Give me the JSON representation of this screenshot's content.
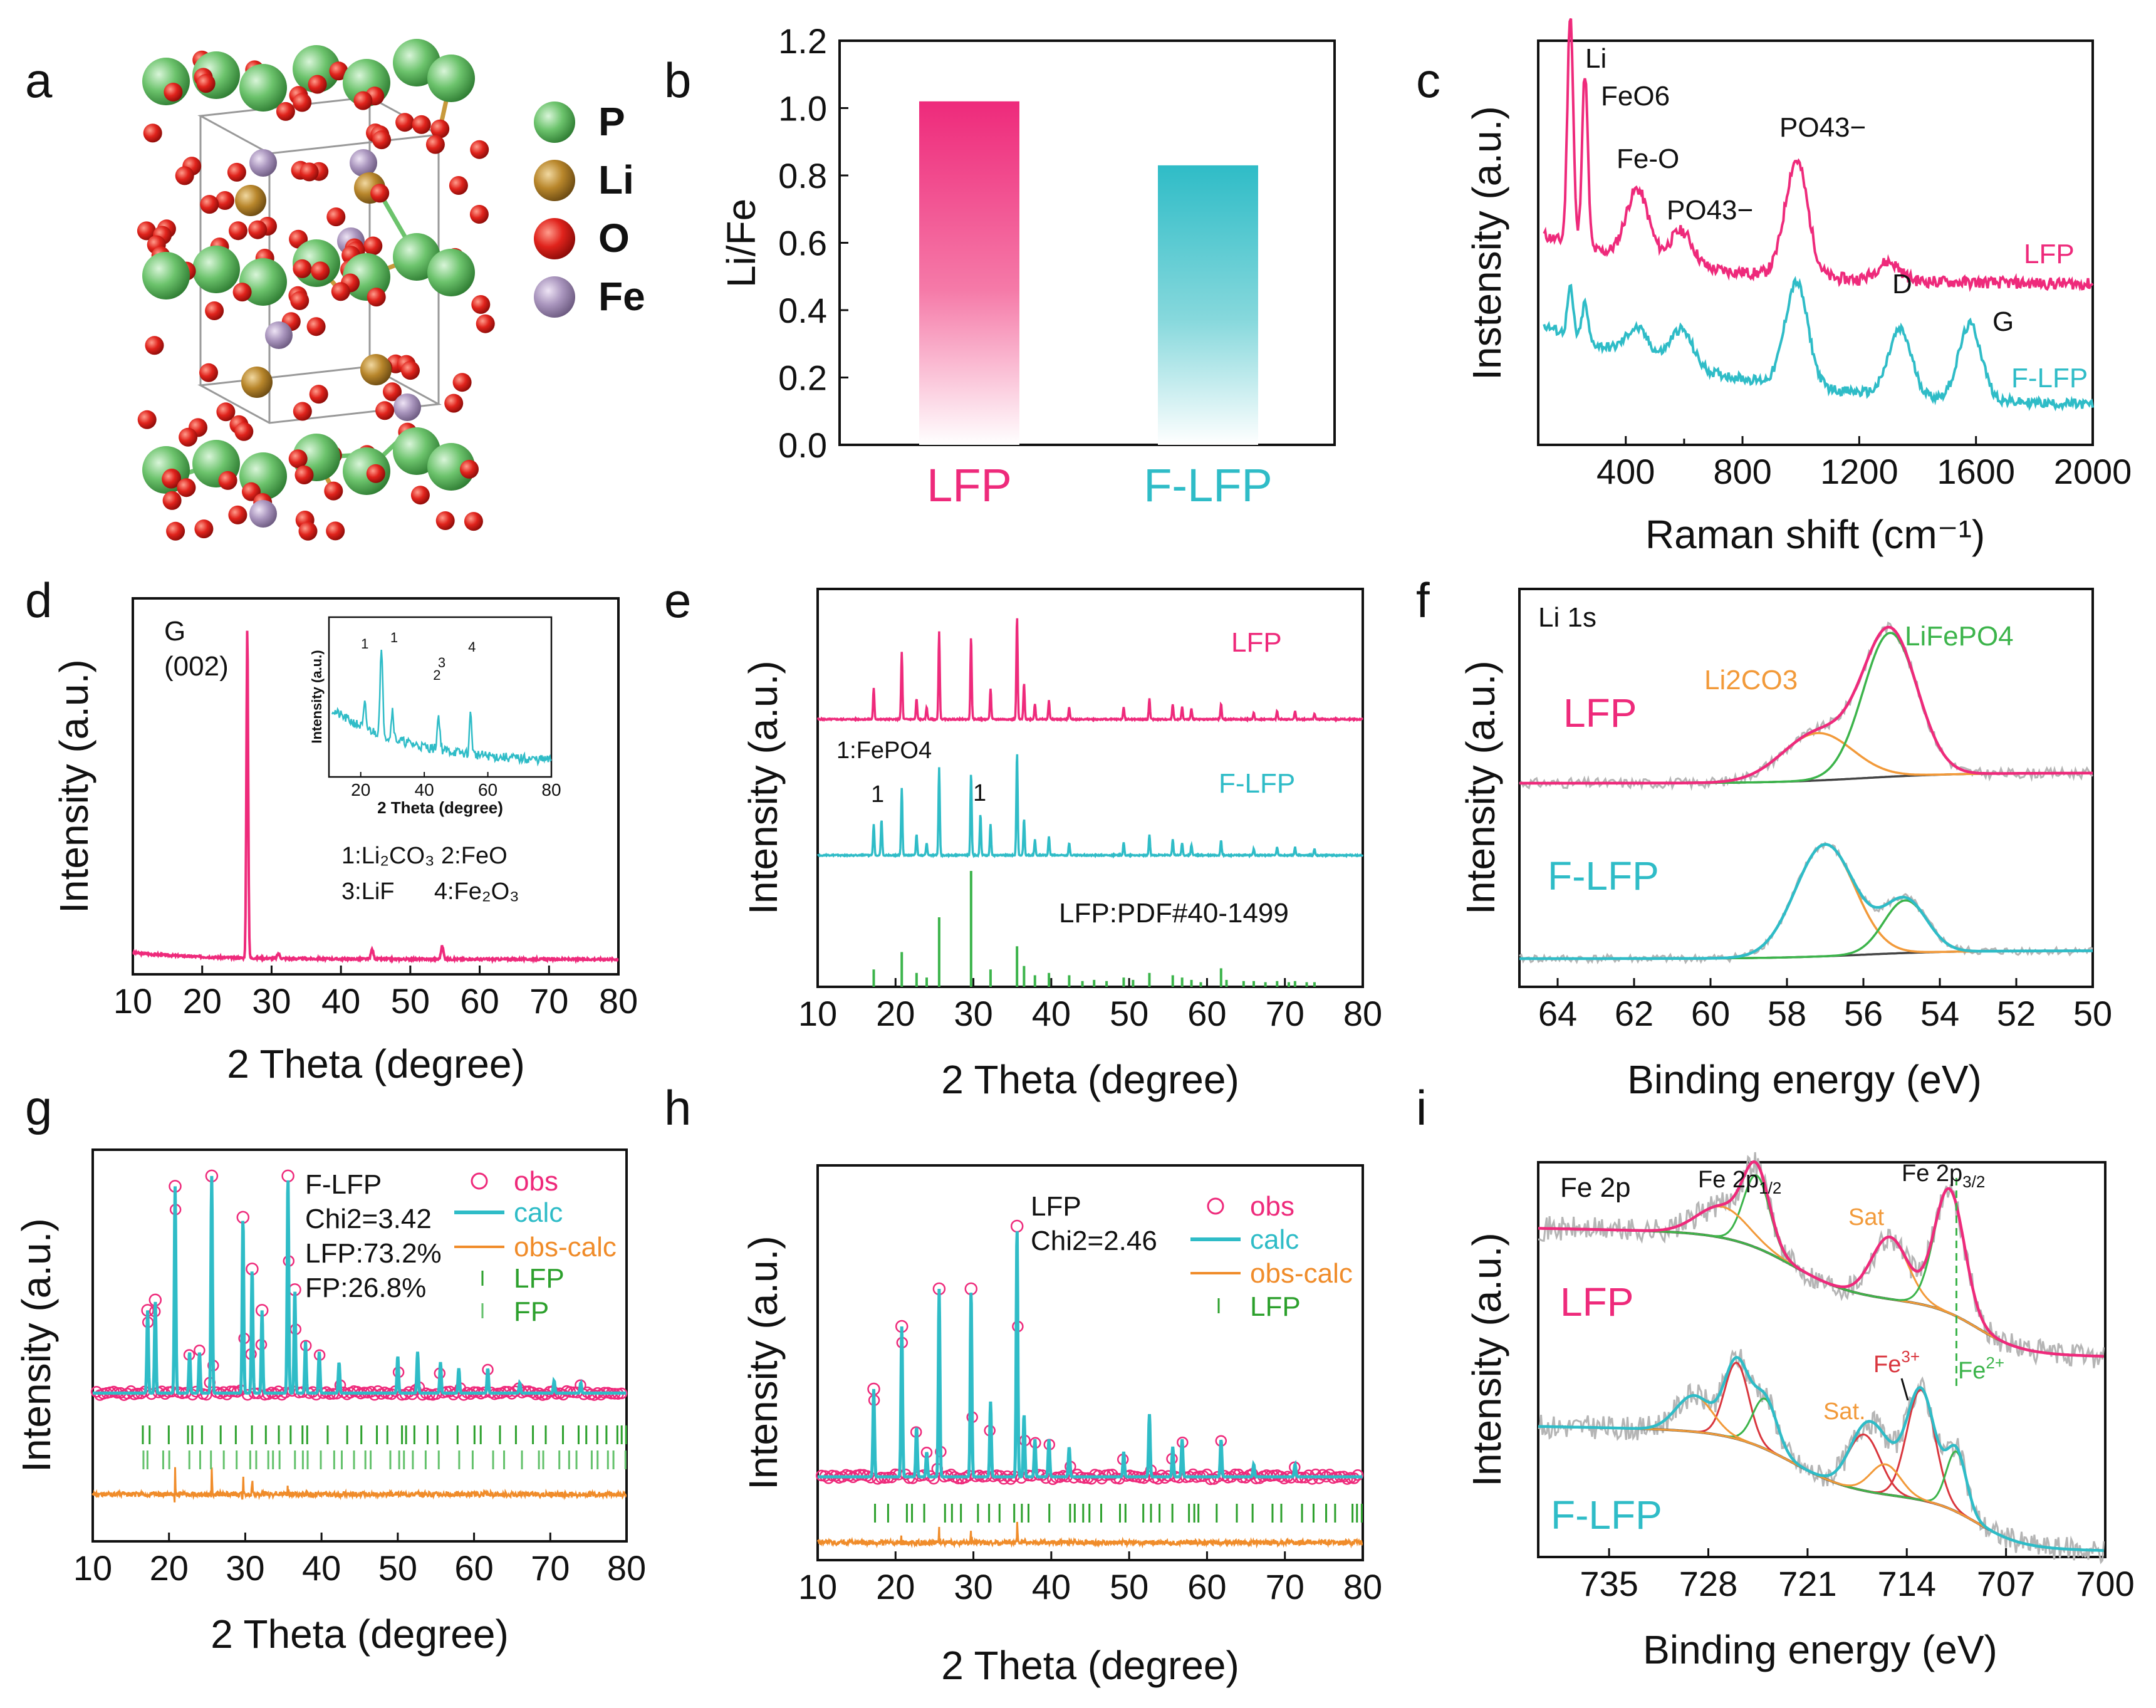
{
  "panel_labels": [
    "a",
    "b",
    "c",
    "d",
    "e",
    "f",
    "g",
    "h",
    "i"
  ],
  "colors": {
    "lfp": "#ee2a7b",
    "flfp": "#2fbcc7",
    "ref": "#2ca02c",
    "diff": "#f08c2a",
    "grey": "#b5b5b5",
    "orange": "#f29a3a",
    "green": "#3cb44b",
    "red": "#d9363e",
    "dark": "#444444"
  },
  "panel_a": {
    "legend": [
      {
        "label": "P",
        "color": "#6cc36c"
      },
      {
        "label": "Li",
        "color": "#b8862b"
      },
      {
        "label": "O",
        "color": "#e0231c"
      },
      {
        "label": "Fe",
        "color": "#a995bd"
      }
    ]
  },
  "chart_data": [
    {
      "id": "b",
      "type": "bar",
      "categories": [
        "LFP",
        "F-LFP"
      ],
      "values": [
        1.02,
        0.83
      ],
      "ylabel": "Li/Fe",
      "ylim": [
        0,
        1.2
      ],
      "yticks": [
        "0.0",
        "0.2",
        "0.4",
        "0.6",
        "0.8",
        "1.0",
        "1.2"
      ]
    },
    {
      "id": "c",
      "type": "line",
      "xlabel": "Raman shift (cm⁻¹)",
      "ylabel": "Instensity (a.u.)",
      "xlim": [
        100,
        2000
      ],
      "xticks": [
        "400",
        "800",
        "1200",
        "1600",
        "2000"
      ],
      "series": [
        {
          "name": "LFP",
          "peaks": [
            [
              210,
              1.0
            ],
            [
              260,
              0.75
            ],
            [
              440,
              0.3
            ],
            [
              590,
              0.15
            ],
            [
              985,
              0.5
            ],
            [
              1300,
              0.08
            ]
          ]
        },
        {
          "name": "F-LFP",
          "peaks": [
            [
              210,
              0.25
            ],
            [
              260,
              0.2
            ],
            [
              440,
              0.15
            ],
            [
              590,
              0.2
            ],
            [
              985,
              0.55
            ],
            [
              1340,
              0.35
            ],
            [
              1580,
              0.4
            ]
          ]
        }
      ],
      "annotations": [
        "Li",
        "FeO6",
        "Fe-O",
        "PO43−",
        "PO43−",
        "D",
        "G"
      ]
    },
    {
      "id": "d",
      "type": "line",
      "xlabel": "2 Theta (degree)",
      "ylabel": "Intensity (a.u.)",
      "xlim": [
        10,
        80
      ],
      "xticks": [
        "10",
        "20",
        "30",
        "40",
        "50",
        "60",
        "70",
        "80"
      ],
      "peak_label": "G",
      "peak_label2": "(002)",
      "main_peak": 26.5,
      "minor_peaks": [
        [
          44.5,
          0.03
        ],
        [
          54.6,
          0.04
        ],
        [
          31,
          0.015
        ]
      ],
      "inset": {
        "xlabel": "2 Theta (degree)",
        "ylabel": "Intensity (a.u.)",
        "xticks": [
          "20",
          "40",
          "60",
          "80"
        ],
        "labels": [
          "1",
          "1",
          "2",
          "3",
          "4"
        ],
        "legend": [
          "1:Li₂CO₃  2:FeO",
          "3:LiF      4:Fe₂O₃"
        ]
      }
    },
    {
      "id": "e",
      "type": "line",
      "xlabel": "2 Theta (degree)",
      "ylabel": "Intensity (a.u.)",
      "xlim": [
        10,
        80
      ],
      "xticks": [
        "10",
        "20",
        "30",
        "40",
        "50",
        "60",
        "70",
        "80"
      ],
      "peaks": [
        [
          17.2,
          0.3
        ],
        [
          20.8,
          0.65
        ],
        [
          22.7,
          0.2
        ],
        [
          24.0,
          0.12
        ],
        [
          25.6,
          0.85
        ],
        [
          29.7,
          0.8
        ],
        [
          32.2,
          0.3
        ],
        [
          35.6,
          1.0
        ],
        [
          36.5,
          0.35
        ],
        [
          37.9,
          0.15
        ],
        [
          39.7,
          0.18
        ],
        [
          42.3,
          0.12
        ],
        [
          49.3,
          0.12
        ],
        [
          52.6,
          0.2
        ],
        [
          55.6,
          0.15
        ],
        [
          56.8,
          0.12
        ],
        [
          58.0,
          0.1
        ],
        [
          61.8,
          0.15
        ],
        [
          66.0,
          0.06
        ],
        [
          69.0,
          0.08
        ],
        [
          71.3,
          0.08
        ],
        [
          73.8,
          0.06
        ]
      ],
      "flfp_extra": [
        [
          18.2,
          0.35
        ],
        [
          30.9,
          0.4
        ]
      ],
      "ref_peaks": [
        [
          17.2,
          0.15
        ],
        [
          20.8,
          0.3
        ],
        [
          22.7,
          0.12
        ],
        [
          24.0,
          0.08
        ],
        [
          25.6,
          0.6
        ],
        [
          29.7,
          1.0
        ],
        [
          32.2,
          0.15
        ],
        [
          35.6,
          0.35
        ],
        [
          36.5,
          0.18
        ],
        [
          37.9,
          0.1
        ],
        [
          39.7,
          0.12
        ],
        [
          42.3,
          0.1
        ],
        [
          44.0,
          0.05
        ],
        [
          45.5,
          0.06
        ],
        [
          47.1,
          0.05
        ],
        [
          49.3,
          0.08
        ],
        [
          50.5,
          0.06
        ],
        [
          52.6,
          0.12
        ],
        [
          55.6,
          0.1
        ],
        [
          56.8,
          0.08
        ],
        [
          58.0,
          0.06
        ],
        [
          59.2,
          0.04
        ],
        [
          61.8,
          0.16
        ],
        [
          62.5,
          0.06
        ],
        [
          64.7,
          0.05
        ],
        [
          66.0,
          0.05
        ],
        [
          67.5,
          0.04
        ],
        [
          69.0,
          0.05
        ],
        [
          70.5,
          0.04
        ],
        [
          71.3,
          0.05
        ],
        [
          72.8,
          0.04
        ],
        [
          73.8,
          0.04
        ]
      ],
      "labels": {
        "lfp": "LFP",
        "flfp": "F-LFP",
        "fepo4": "1:FePO4",
        "mark": "1",
        "ref": "LFP:PDF#40-1499"
      }
    },
    {
      "id": "f",
      "type": "line",
      "title": "Li 1s",
      "xlabel": "Binding energy (eV)",
      "ylabel": "Intensity (a.u.)",
      "xlim": [
        65,
        50
      ],
      "xticks": [
        "64",
        "62",
        "60",
        "58",
        "56",
        "54",
        "52",
        "50"
      ],
      "lfp": {
        "components": [
          {
            "name": "Li2CO3",
            "center": 57.2,
            "amp": 0.28,
            "sigma": 1.3
          },
          {
            "name": "LiFePO4",
            "center": 55.3,
            "amp": 0.85,
            "sigma": 1.0
          }
        ]
      },
      "flfp": {
        "components": [
          {
            "name": "Li2CO3",
            "center": 57.0,
            "amp": 0.85,
            "sigma": 1.1
          },
          {
            "name": "LiFePO4",
            "center": 54.9,
            "amp": 0.4,
            "sigma": 0.8
          }
        ]
      },
      "labels": {
        "li2co3": "Li2CO3",
        "lifepo4": "LiFePO4",
        "lfp": "LFP",
        "flfp": "F-LFP"
      }
    },
    {
      "id": "g",
      "type": "scatter",
      "xlabel": "2 Theta (degree)",
      "ylabel": "Intensity (a.u.)",
      "xlim": [
        10,
        80
      ],
      "xticks": [
        "10",
        "20",
        "30",
        "40",
        "50",
        "60",
        "70",
        "80"
      ],
      "info": [
        "F-LFP",
        "Chi2=3.42",
        "LFP:73.2%",
        "FP:26.8%"
      ],
      "legend": [
        "obs",
        "calc",
        "obs-calc",
        "LFP",
        "FP"
      ],
      "peaks": [
        [
          17.2,
          0.4
        ],
        [
          18.2,
          0.45
        ],
        [
          20.8,
          1.0
        ],
        [
          22.7,
          0.2
        ],
        [
          24.0,
          0.2
        ],
        [
          25.6,
          1.05
        ],
        [
          29.7,
          0.85
        ],
        [
          30.9,
          0.6
        ],
        [
          32.2,
          0.4
        ],
        [
          35.6,
          1.05
        ],
        [
          36.5,
          0.5
        ],
        [
          37.9,
          0.25
        ],
        [
          39.7,
          0.2
        ],
        [
          42.3,
          0.15
        ],
        [
          50.0,
          0.18
        ],
        [
          52.6,
          0.2
        ],
        [
          55.6,
          0.15
        ],
        [
          58.0,
          0.12
        ],
        [
          61.8,
          0.12
        ],
        [
          66.0,
          0.05
        ],
        [
          70.5,
          0.06
        ],
        [
          74.0,
          0.05
        ]
      ]
    },
    {
      "id": "h",
      "type": "scatter",
      "xlabel": "2 Theta (degree)",
      "ylabel": "Intensity (a.u.)",
      "xlim": [
        10,
        80
      ],
      "xticks": [
        "10",
        "20",
        "30",
        "40",
        "50",
        "60",
        "70",
        "80"
      ],
      "info": [
        "LFP",
        "Chi2=2.46"
      ],
      "legend": [
        "obs",
        "calc",
        "obs-calc",
        "LFP"
      ],
      "peaks": [
        [
          17.2,
          0.35
        ],
        [
          20.8,
          0.6
        ],
        [
          22.7,
          0.2
        ],
        [
          24.0,
          0.1
        ],
        [
          25.6,
          0.75
        ],
        [
          29.7,
          0.75
        ],
        [
          32.2,
          0.3
        ],
        [
          35.6,
          1.0
        ],
        [
          36.5,
          0.25
        ],
        [
          37.9,
          0.15
        ],
        [
          39.7,
          0.15
        ],
        [
          42.3,
          0.12
        ],
        [
          49.3,
          0.1
        ],
        [
          52.6,
          0.25
        ],
        [
          55.6,
          0.12
        ],
        [
          56.8,
          0.15
        ],
        [
          61.8,
          0.15
        ],
        [
          66.0,
          0.05
        ],
        [
          71.3,
          0.05
        ]
      ]
    },
    {
      "id": "i",
      "type": "line",
      "title": "Fe 2p",
      "xlabel": "Binding energy (eV)",
      "ylabel": "Intensity (a.u.)",
      "xlim": [
        740,
        700
      ],
      "xticks": [
        "735",
        "728",
        "721",
        "714",
        "707",
        "700"
      ],
      "labels": {
        "fe2p12": "Fe 2p",
        "sub12": "1/2",
        "fe2p32": "Fe 2p",
        "sub32": "3/2",
        "sat": "Sat",
        "sat2": "Sat.",
        "fe3": "Fe",
        "fe3sup": "3+",
        "fe2": "Fe",
        "fe2sup": "2+",
        "lfp": "LFP",
        "flfp": "F-LFP"
      },
      "lfp": {
        "components": [
          {
            "center": 724.6,
            "amp": 0.35,
            "sigma": 1.3,
            "color": "green"
          },
          {
            "center": 727,
            "amp": 0.15,
            "sigma": 2.5,
            "color": "orange"
          },
          {
            "center": 715.2,
            "amp": 0.3,
            "sigma": 1.8,
            "color": "orange"
          },
          {
            "center": 711,
            "amp": 0.6,
            "sigma": 1.5,
            "color": "green"
          }
        ]
      },
      "flfp": {
        "components": [
          {
            "center": 726,
            "amp": 0.38,
            "sigma": 1.2,
            "color": "red"
          },
          {
            "center": 724,
            "amp": 0.25,
            "sigma": 1.2,
            "color": "green"
          },
          {
            "center": 729,
            "amp": 0.18,
            "sigma": 1.8,
            "color": "orange"
          },
          {
            "center": 717,
            "amp": 0.28,
            "sigma": 1.6,
            "color": "red"
          },
          {
            "center": 713,
            "amp": 0.55,
            "sigma": 1.4,
            "color": "red"
          },
          {
            "center": 710.5,
            "amp": 0.3,
            "sigma": 1.0,
            "color": "green"
          },
          {
            "center": 715.5,
            "amp": 0.15,
            "sigma": 1.5,
            "color": "orange"
          }
        ]
      }
    }
  ]
}
